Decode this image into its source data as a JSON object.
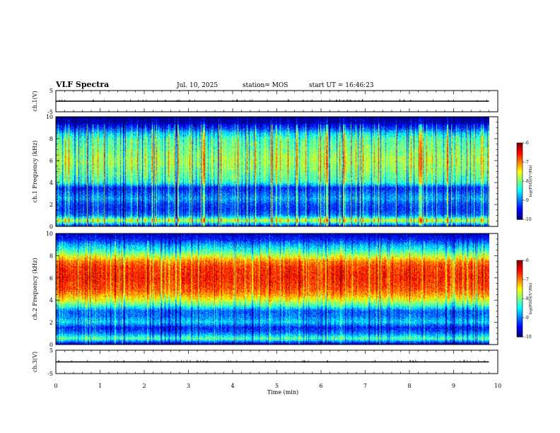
{
  "header": {
    "title": "VLF Spectra",
    "date": "Jul. 10, 2025",
    "station": "station= MOS",
    "start_ut": "start UT = 16:46:23"
  },
  "chart_data": [
    {
      "type": "line",
      "name": "ch1-voltage",
      "ylabel": "ch.1(V)",
      "ylim": [
        -5,
        5
      ],
      "yticks": [
        "5",
        "-5"
      ],
      "x": [
        0,
        9.8
      ],
      "values": [
        0,
        0
      ],
      "xlim": [
        0,
        10
      ]
    },
    {
      "type": "heatmap",
      "name": "ch1-spectrogram",
      "ylabel": "ch.1 Frequency (kHz)",
      "ylim": [
        0,
        10
      ],
      "yticks": [
        "0",
        "2",
        "4",
        "6",
        "8",
        "10"
      ],
      "xlim": [
        0,
        9.8
      ],
      "colorbar": {
        "label": "log(PSD)(V²/Hz)",
        "range": [
          -10,
          -6
        ],
        "ticks": [
          "-6",
          "-7",
          "-8",
          "-9",
          "-10"
        ]
      },
      "profile_khz": [
        0,
        0.5,
        1,
        1.5,
        2,
        2.5,
        3,
        3.5,
        4,
        5,
        6,
        7,
        8,
        8.5,
        9,
        9.5,
        10
      ],
      "profile_log_psd": [
        -9.4,
        -7.6,
        -9.0,
        -9.3,
        -9.2,
        -8.8,
        -9.1,
        -9.4,
        -8.3,
        -8.0,
        -7.8,
        -8.0,
        -8.2,
        -8.6,
        -9.3,
        -9.8,
        -10
      ]
    },
    {
      "type": "heatmap",
      "name": "ch2-spectrogram",
      "ylabel": "ch.2 Frequency (kHz)",
      "ylim": [
        0,
        10
      ],
      "yticks": [
        "0",
        "2",
        "4",
        "6",
        "8",
        "10"
      ],
      "xlim": [
        0,
        9.8
      ],
      "colorbar": {
        "label": "log(PSD)(V²/Hz)",
        "range": [
          -10,
          -6
        ],
        "ticks": [
          "-6",
          "-7",
          "-8",
          "-9",
          "-10"
        ]
      },
      "profile_khz": [
        0,
        0.5,
        1,
        1.5,
        2,
        2.5,
        3,
        3.5,
        4,
        4.5,
        5,
        6,
        7,
        7.5,
        8,
        8.5,
        9,
        9.5,
        10
      ],
      "profile_log_psd": [
        -9.8,
        -8.1,
        -9.0,
        -9.4,
        -8.6,
        -9.0,
        -9.1,
        -8.2,
        -7.6,
        -7.1,
        -6.8,
        -6.6,
        -6.7,
        -7.0,
        -7.7,
        -8.3,
        -8.8,
        -9.4,
        -9.7
      ]
    },
    {
      "type": "line",
      "name": "ch3-voltage",
      "ylabel": "ch.3(V)",
      "ylim": [
        -5,
        5
      ],
      "yticks": [
        "5",
        "-5"
      ],
      "x": [
        0,
        9.8
      ],
      "values": [
        0,
        0
      ],
      "xlim": [
        0,
        10
      ]
    }
  ],
  "xaxis": {
    "label": "Time (min)",
    "ticks": [
      "0",
      "1",
      "2",
      "3",
      "4",
      "5",
      "6",
      "7",
      "8",
      "9",
      "10"
    ]
  }
}
